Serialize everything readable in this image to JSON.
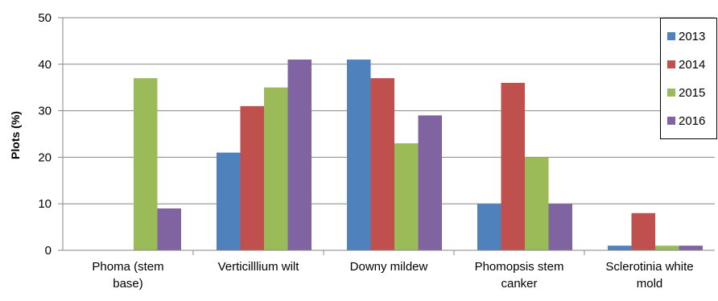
{
  "chart_data": {
    "type": "bar",
    "title": "",
    "xlabel": "",
    "ylabel": "Plots (%)",
    "ylim": [
      0,
      50
    ],
    "yticks": [
      0,
      10,
      20,
      30,
      40,
      50
    ],
    "grid": "horizontal",
    "legend_position": "right",
    "categories": [
      [
        "Phoma (stem",
        "base)"
      ],
      [
        "Verticilllium wilt"
      ],
      [
        "Downy mildew"
      ],
      [
        "Phomopsis stem",
        "canker"
      ],
      [
        "Sclerotinia white",
        "mold"
      ]
    ],
    "series": [
      {
        "name": "2013",
        "color": "#4F81BD",
        "values": [
          0,
          21,
          41,
          10,
          1
        ]
      },
      {
        "name": "2014",
        "color": "#C0504D",
        "values": [
          0,
          31,
          37,
          36,
          8
        ]
      },
      {
        "name": "2015",
        "color": "#9BBB59",
        "values": [
          37,
          35,
          23,
          20,
          1
        ]
      },
      {
        "name": "2016",
        "color": "#8064A2",
        "values": [
          9,
          41,
          29,
          10,
          1
        ]
      }
    ]
  }
}
